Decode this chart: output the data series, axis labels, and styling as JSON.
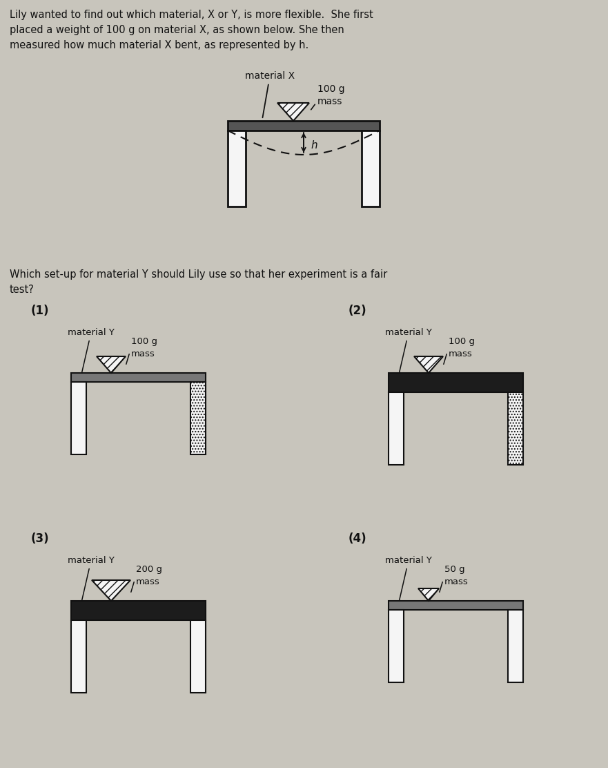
{
  "bg_color": "#c8c5bc",
  "text_color": "#111111",
  "title_line1": "Lily wanted to find out which material, X or Y, is more flexible.  She first",
  "title_line2": "placed a weight of 100 g on material X, as shown below. She then",
  "title_line3": "measured how much material X bent, as represented by h.",
  "question_line1": "Which set-up for material Y should Lily use so that her experiment is a fair",
  "question_line2": "test?",
  "opt1_label": "(1)",
  "opt1_mass": "100 g\nmass",
  "opt1_thick": false,
  "opt1_right_hatch": true,
  "opt2_label": "(2)",
  "opt2_mass": "100 g\nmass",
  "opt2_thick": true,
  "opt2_right_hatch": true,
  "opt3_label": "(3)",
  "opt3_mass": "200 g\nmass",
  "opt3_thick": true,
  "opt3_right_hatch": false,
  "opt4_label": "(4)",
  "opt4_mass": "50 g\nmass",
  "opt4_thick": false,
  "opt4_right_hatch": false
}
